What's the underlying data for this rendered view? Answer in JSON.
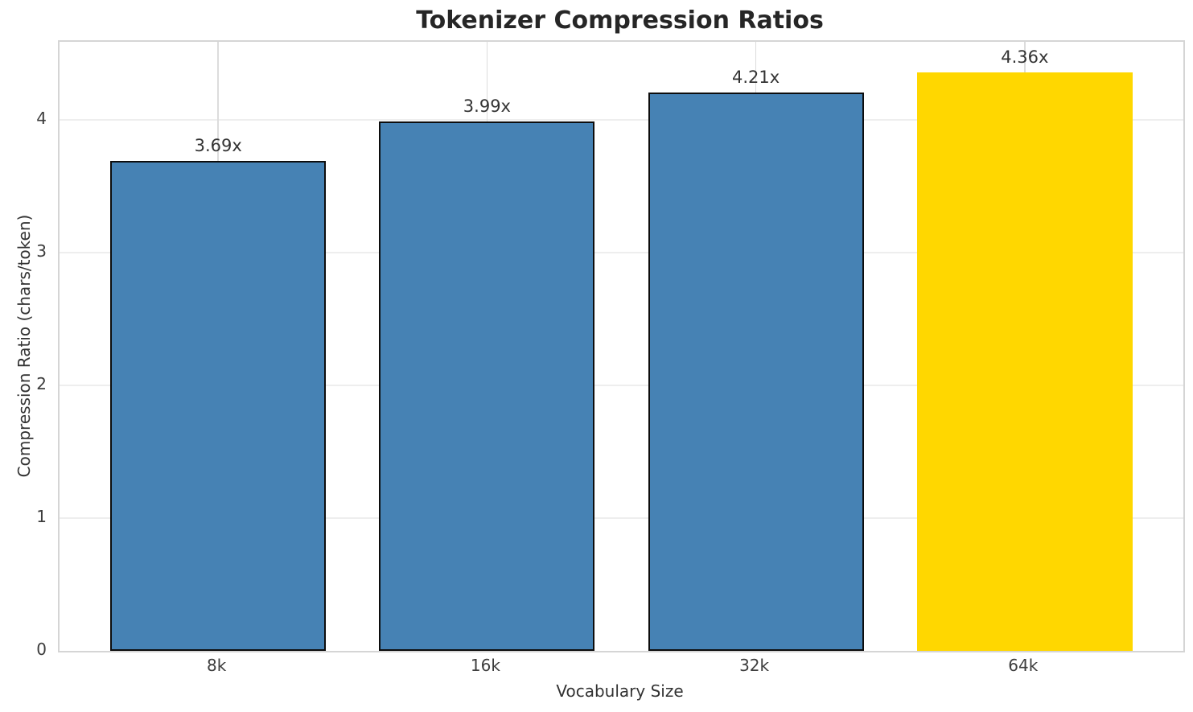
{
  "chart_data": {
    "type": "bar",
    "title": "Tokenizer Compression Ratios",
    "xlabel": "Vocabulary Size",
    "ylabel": "Compression Ratio (chars/token)",
    "categories": [
      "8k",
      "16k",
      "32k",
      "64k"
    ],
    "values": [
      3.69,
      3.99,
      4.21,
      4.36
    ],
    "bar_labels": [
      "3.69x",
      "3.99x",
      "4.21x",
      "4.36x"
    ],
    "bar_colors": [
      "#4682B4",
      "#4682B4",
      "#4682B4",
      "#FFD700"
    ],
    "bar_edge_colors": [
      "#0d0d0d",
      "#0d0d0d",
      "#0d0d0d",
      "none"
    ],
    "base_color": "#4682B4",
    "highlight_color": "#FFD700",
    "ylim": [
      0,
      4.59
    ],
    "yticks": [
      0,
      1,
      2,
      3,
      4
    ],
    "grid": true,
    "legend_position": "none"
  }
}
